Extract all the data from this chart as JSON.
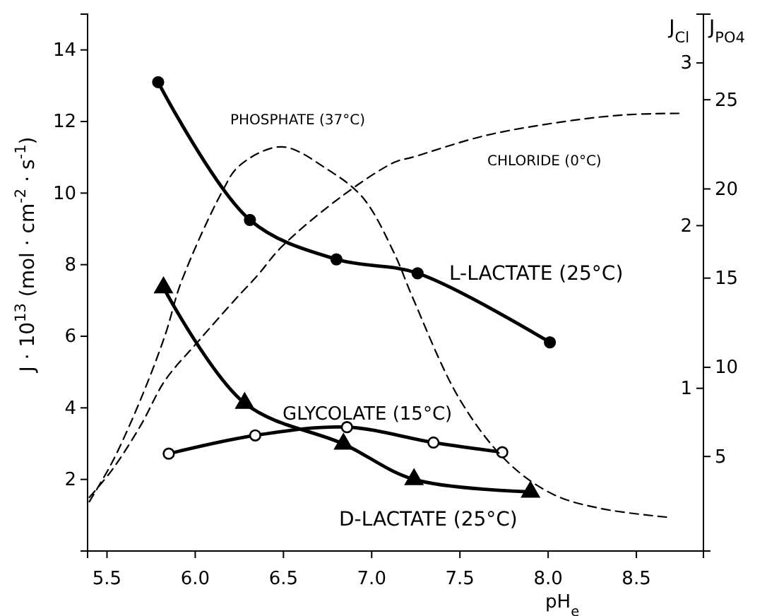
{
  "chart_data": {
    "type": "line",
    "xlabel": "pH$_{e}$",
    "ylabel": "J · 10$^{13}$ (mol · cm$^{-2}$ · s$^{-1}$)",
    "y2label": "J$_{Cl}$",
    "y3label": "J$_{PO4}$",
    "xlim": [
      5.39,
      8.88
    ],
    "xticks": [
      5.5,
      {
        "value": 6,
        "label": "6.0"
      },
      6.5,
      {
        "value": 7,
        "label": "7.0"
      },
      7.5,
      {
        "value": 8,
        "label": "8.0"
      },
      8.5
    ],
    "ylim": [
      0,
      15
    ],
    "yticks": [
      2,
      4,
      6,
      8,
      10,
      12,
      14
    ],
    "y2lim": [
      0,
      3.3
    ],
    "y2ticks": [
      1,
      2,
      3
    ],
    "y3lim": [
      -0.3,
      29.8
    ],
    "y3ticks": [
      5,
      10,
      15,
      20,
      25
    ],
    "grid": false,
    "series": [
      {
        "name": "L-LACTATE (25°C)",
        "color": "#000000",
        "marker": "circle",
        "line_style": "solid",
        "x": [
          5.79,
          6.31,
          6.8,
          7.26,
          8.01
        ],
        "values": [
          13.1,
          9.25,
          8.15,
          7.76,
          5.83
        ]
      },
      {
        "name": "GLYCOLATE (15°C)",
        "color": "#000000",
        "marker": "circle-open",
        "line_style": "solid",
        "x": [
          5.85,
          6.34,
          6.86,
          7.35,
          7.74
        ],
        "values": [
          2.72,
          3.23,
          3.46,
          3.03,
          2.76
        ]
      },
      {
        "name": "D-LACTATE (25°C)",
        "color": "#000000",
        "marker": "triangle",
        "line_style": "solid",
        "x": [
          5.82,
          6.28,
          6.84,
          7.24,
          7.9
        ],
        "values": [
          7.36,
          4.13,
          2.99,
          2.0,
          1.65
        ]
      },
      {
        "name": "PHOSPHATE (37°C)",
        "color": "#000000",
        "marker": "none",
        "line_style": "dashed",
        "axis": "y3",
        "x": [
          5.4,
          5.53,
          5.69,
          5.83,
          5.92,
          6.15,
          6.25,
          6.49,
          6.75,
          6.95,
          7.13,
          7.23,
          7.5,
          7.77,
          8.03,
          8.3,
          8.67
        ],
        "values": [
          2.47,
          4.69,
          8.18,
          11.82,
          14.76,
          19.8,
          21.3,
          22.36,
          21.09,
          19.51,
          16.34,
          13.96,
          8.18,
          4.69,
          2.87,
          2.08,
          1.6
        ]
      },
      {
        "name": "CHLORIDE (0°C)",
        "color": "#000000",
        "marker": "none",
        "line_style": "dashed",
        "axis": "y2",
        "x": [
          5.4,
          5.53,
          5.69,
          5.83,
          6.01,
          6.23,
          6.35,
          6.49,
          6.83,
          7.13,
          7.23,
          7.63,
          8.03,
          8.42,
          8.74
        ],
        "values": [
          0.33,
          0.5,
          0.77,
          1.05,
          1.28,
          1.55,
          1.69,
          1.87,
          2.18,
          2.39,
          2.42,
          2.55,
          2.63,
          2.68,
          2.69
        ]
      }
    ]
  }
}
